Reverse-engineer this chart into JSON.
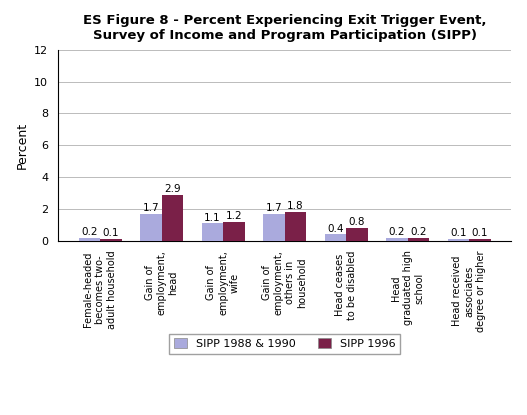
{
  "title": "ES Figure 8 - Percent Experiencing Exit Trigger Event,\nSurvey of Income and Program Participation (SIPP)",
  "ylabel": "Percent",
  "categories": [
    "Female-headed\nbecomes two-\nadult household",
    "Gain of\nemployment,\nhead",
    "Gain of\nemployment,\nwife",
    "Gain of\nemployment,\nothers in\nhousehold",
    "Head ceases\nto be disabled",
    "Head\ngraduated high\nschool",
    "Head received\nassociates\ndegree or higher"
  ],
  "series": {
    "SIPP 1988 & 1990": [
      0.2,
      1.7,
      1.1,
      1.7,
      0.4,
      0.2,
      0.1
    ],
    "SIPP 1996": [
      0.1,
      2.9,
      1.2,
      1.8,
      0.8,
      0.2,
      0.1
    ]
  },
  "colors": {
    "SIPP 1988 & 1990": "#aaaadd",
    "SIPP 1996": "#7a2048"
  },
  "ylim": [
    0,
    12
  ],
  "yticks": [
    0,
    2,
    4,
    6,
    8,
    10,
    12
  ],
  "bar_width": 0.35,
  "title_fontsize": 9.5,
  "axis_fontsize": 9,
  "tick_fontsize": 8,
  "label_fontsize": 7.5,
  "legend_fontsize": 8,
  "xtick_fontsize": 7,
  "background_color": "#ffffff",
  "grid_color": "#bbbbbb"
}
